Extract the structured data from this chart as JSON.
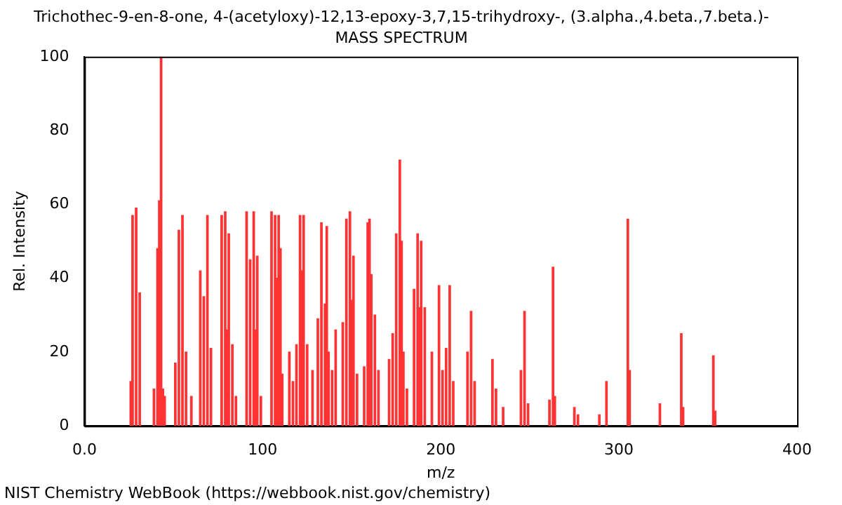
{
  "chart_data": {
    "type": "bar",
    "title": "Trichothec-9-en-8-one, 4-(acetyloxy)-12,13-epoxy-3,7,15-trihydroxy-, (3.alpha.,4.beta.,7.beta.)-",
    "subtitle": "MASS SPECTRUM",
    "xlabel": "m/z",
    "ylabel": "Rel. Intensity",
    "x": [
      26,
      27,
      29,
      31,
      39,
      41,
      42,
      43,
      44,
      45,
      51,
      53,
      55,
      57,
      60,
      65,
      67,
      69,
      71,
      77,
      79,
      80,
      81,
      83,
      85,
      91,
      93,
      95,
      96,
      97,
      99,
      105,
      107,
      108,
      109,
      110,
      111,
      115,
      117,
      119,
      121,
      122,
      123,
      125,
      128,
      131,
      133,
      135,
      136,
      137,
      139,
      141,
      145,
      147,
      149,
      150,
      151,
      153,
      157,
      159,
      160,
      161,
      163,
      165,
      171,
      173,
      175,
      177,
      178,
      179,
      181,
      185,
      187,
      188,
      189,
      191,
      195,
      199,
      201,
      203,
      205,
      207,
      215,
      217,
      219,
      229,
      231,
      235,
      245,
      247,
      249,
      261,
      263,
      264,
      275,
      277,
      289,
      293,
      305,
      306,
      323,
      335,
      336,
      353,
      354
    ],
    "values": [
      12,
      57,
      59,
      36,
      10,
      48,
      61,
      100,
      10,
      8,
      17,
      53,
      57,
      20,
      8,
      42,
      35,
      57,
      21,
      57,
      58,
      26,
      52,
      22,
      8,
      58,
      45,
      58,
      26,
      46,
      8,
      58,
      57,
      40,
      57,
      48,
      14,
      20,
      12,
      22,
      57,
      42,
      57,
      22,
      15,
      29,
      55,
      33,
      54,
      20,
      15,
      26,
      28,
      56,
      58,
      34,
      46,
      14,
      16,
      55,
      56,
      41,
      30,
      15,
      18,
      25,
      52,
      72,
      50,
      20,
      10,
      37,
      52,
      32,
      50,
      32,
      20,
      38,
      15,
      21,
      38,
      12,
      20,
      31,
      12,
      18,
      10,
      5,
      15,
      31,
      6,
      7,
      43,
      8,
      5,
      3,
      3,
      12,
      56,
      15,
      6,
      25,
      5,
      19,
      4
    ],
    "color": "#ff3333",
    "xlim": [
      0,
      400
    ],
    "xticks": [
      {
        "value": 0,
        "label": "0.0"
      },
      100,
      200,
      300,
      400
    ],
    "ylim": [
      0,
      100
    ],
    "yticks": [
      0,
      20,
      40,
      60,
      80,
      100
    ],
    "grid": false,
    "legend": false,
    "annotations": [
      "NIST Chemistry WebBook (https://webbook.nist.gov/chemistry)"
    ]
  }
}
